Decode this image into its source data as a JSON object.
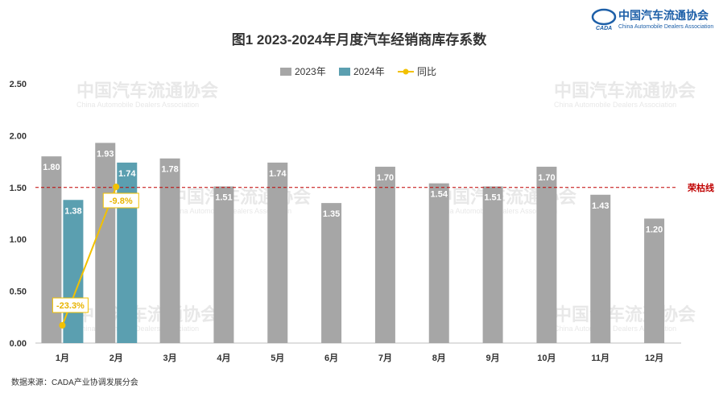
{
  "header": {
    "title": "图1  2023-2024年月度汽车经销商库存系数",
    "logo_cn": "中国汽车流通协会",
    "logo_en": "China Automobile Dealers Association",
    "logo_mark": "CADA"
  },
  "watermark": {
    "cn": "中国汽车流通协会",
    "en": "China Automobile Dealers Association"
  },
  "footer": {
    "source": "数据来源：CADA产业协调发展分会"
  },
  "colors": {
    "s2023": "#a6a6a6",
    "s2024": "#5b9fb0",
    "yoy": "#f2c100",
    "refline": "#c00000"
  },
  "chart_data": {
    "type": "bar",
    "title": "图1  2023-2024年月度汽车经销商库存系数",
    "categories": [
      "1月",
      "2月",
      "3月",
      "4月",
      "5月",
      "6月",
      "7月",
      "8月",
      "9月",
      "10月",
      "11月",
      "12月"
    ],
    "series": [
      {
        "name": "2023年",
        "values": [
          1.8,
          1.93,
          1.78,
          1.51,
          1.74,
          1.35,
          1.7,
          1.54,
          1.51,
          1.7,
          1.43,
          1.2
        ]
      },
      {
        "name": "2024年",
        "values": [
          1.38,
          1.74,
          null,
          null,
          null,
          null,
          null,
          null,
          null,
          null,
          null,
          null
        ]
      }
    ],
    "line_series": {
      "name": "同比",
      "values": [
        -23.3,
        -9.8
      ],
      "labels": [
        "-23.3%",
        "-9.8%"
      ]
    },
    "ylim": [
      0,
      2.5
    ],
    "yticks": [
      "0.00",
      "0.50",
      "1.00",
      "1.50",
      "2.00",
      "2.50"
    ],
    "reference_line": {
      "value": 1.5,
      "label": "荣枯线"
    },
    "legend": "top-center",
    "grid": false
  }
}
